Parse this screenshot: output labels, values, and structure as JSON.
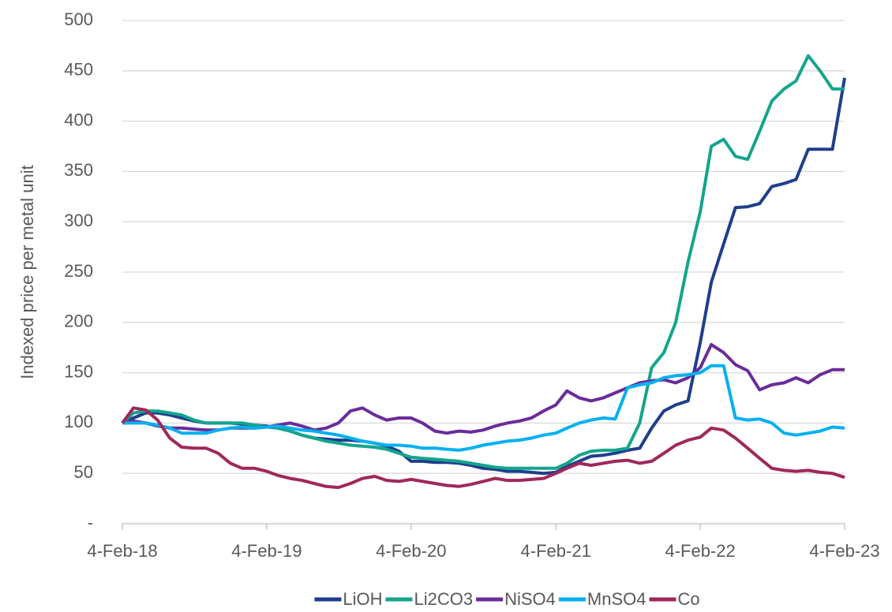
{
  "chart_data": {
    "type": "line",
    "ylabel": "Indexed price per metal unit",
    "x": [
      "2018-02-04",
      "2018-03-04",
      "2018-04-04",
      "2018-05-04",
      "2018-06-04",
      "2018-07-04",
      "2018-08-04",
      "2018-09-04",
      "2018-10-04",
      "2018-11-04",
      "2018-12-04",
      "2019-01-04",
      "2019-02-04",
      "2019-03-04",
      "2019-04-04",
      "2019-05-04",
      "2019-06-04",
      "2019-07-04",
      "2019-08-04",
      "2019-09-04",
      "2019-10-04",
      "2019-11-04",
      "2019-12-04",
      "2020-01-04",
      "2020-02-04",
      "2020-03-04",
      "2020-04-04",
      "2020-05-04",
      "2020-06-04",
      "2020-07-04",
      "2020-08-04",
      "2020-09-04",
      "2020-10-04",
      "2020-11-04",
      "2020-12-04",
      "2021-01-04",
      "2021-02-04",
      "2021-03-04",
      "2021-04-04",
      "2021-05-04",
      "2021-06-04",
      "2021-07-04",
      "2021-08-04",
      "2021-09-04",
      "2021-10-04",
      "2021-11-04",
      "2021-12-04",
      "2022-01-04",
      "2022-02-04",
      "2022-03-04",
      "2022-04-04",
      "2022-05-04",
      "2022-06-04",
      "2022-07-04",
      "2022-08-04",
      "2022-09-04",
      "2022-10-04",
      "2022-11-04",
      "2022-12-04",
      "2023-01-04",
      "2023-02-04"
    ],
    "series": [
      {
        "name": "LiOH",
        "color": "#1f3e8c",
        "values": [
          100,
          105,
          110,
          110,
          108,
          105,
          102,
          100,
          100,
          100,
          99,
          98,
          97,
          95,
          92,
          88,
          85,
          84,
          83,
          83,
          82,
          80,
          77,
          72,
          62,
          62,
          61,
          61,
          60,
          58,
          55,
          54,
          52,
          52,
          51,
          50,
          51,
          57,
          62,
          67,
          68,
          70,
          73,
          75,
          95,
          112,
          118,
          122,
          180,
          240,
          278,
          314,
          315,
          318,
          335,
          338,
          342,
          372,
          372,
          372,
          443
        ]
      },
      {
        "name": "Li2CO3",
        "color": "#14a58c",
        "values": [
          100,
          110,
          112,
          112,
          110,
          108,
          103,
          100,
          100,
          100,
          100,
          98,
          96,
          95,
          92,
          88,
          85,
          82,
          80,
          78,
          77,
          76,
          74,
          70,
          66,
          65,
          64,
          63,
          62,
          60,
          58,
          56,
          55,
          55,
          55,
          55,
          55,
          60,
          68,
          72,
          73,
          73,
          75,
          100,
          155,
          170,
          200,
          260,
          310,
          375,
          382,
          365,
          362,
          390,
          420,
          432,
          440,
          465,
          450,
          432,
          432
        ]
      },
      {
        "name": "NiSO4",
        "color": "#6a2c9a",
        "values": [
          100,
          102,
          100,
          97,
          95,
          95,
          94,
          93,
          93,
          95,
          95,
          95,
          96,
          98,
          100,
          97,
          93,
          95,
          100,
          112,
          115,
          108,
          103,
          105,
          105,
          100,
          92,
          90,
          92,
          91,
          93,
          97,
          100,
          102,
          105,
          112,
          118,
          132,
          125,
          122,
          125,
          130,
          135,
          140,
          142,
          143,
          140,
          145,
          155,
          178,
          170,
          158,
          152,
          133,
          138,
          140,
          145,
          140,
          148,
          153,
          153
        ]
      },
      {
        "name": "MnSO4",
        "color": "#00b0f0",
        "values": [
          100,
          100,
          100,
          98,
          95,
          90,
          90,
          90,
          93,
          95,
          96,
          95,
          96,
          97,
          95,
          93,
          92,
          90,
          88,
          85,
          82,
          80,
          78,
          78,
          77,
          75,
          75,
          74,
          73,
          75,
          78,
          80,
          82,
          83,
          85,
          88,
          90,
          95,
          100,
          103,
          105,
          104,
          135,
          138,
          140,
          145,
          147,
          148,
          150,
          157,
          157,
          105,
          103,
          104,
          100,
          90,
          88,
          90,
          92,
          96,
          95
        ]
      },
      {
        "name": "Co",
        "color": "#a0285a",
        "values": [
          100,
          115,
          113,
          103,
          85,
          76,
          75,
          75,
          70,
          60,
          55,
          55,
          52,
          48,
          45,
          43,
          40,
          37,
          36,
          40,
          45,
          47,
          43,
          42,
          44,
          42,
          40,
          38,
          37,
          39,
          42,
          45,
          43,
          43,
          44,
          45,
          50,
          55,
          60,
          58,
          60,
          62,
          63,
          60,
          62,
          70,
          78,
          83,
          86,
          95,
          93,
          85,
          75,
          65,
          55,
          53,
          52,
          53,
          51,
          50,
          46
        ]
      }
    ],
    "xlim": [
      "2018-02-04",
      "2023-02-04"
    ],
    "xticks": [
      {
        "value": "2018-02-04",
        "label": "4-Feb-18"
      },
      {
        "value": "2019-02-04",
        "label": "4-Feb-19"
      },
      {
        "value": "2020-02-04",
        "label": "4-Feb-20"
      },
      {
        "value": "2021-02-04",
        "label": "4-Feb-21"
      },
      {
        "value": "2022-02-04",
        "label": "4-Feb-22"
      },
      {
        "value": "2023-02-04",
        "label": "4-Feb-23"
      }
    ],
    "ylim": [
      0,
      500
    ],
    "yticks": [
      {
        "value": 0,
        "label": "-"
      },
      50,
      100,
      150,
      200,
      250,
      300,
      350,
      400,
      450,
      500
    ],
    "grid": true,
    "legend": "bottom"
  }
}
